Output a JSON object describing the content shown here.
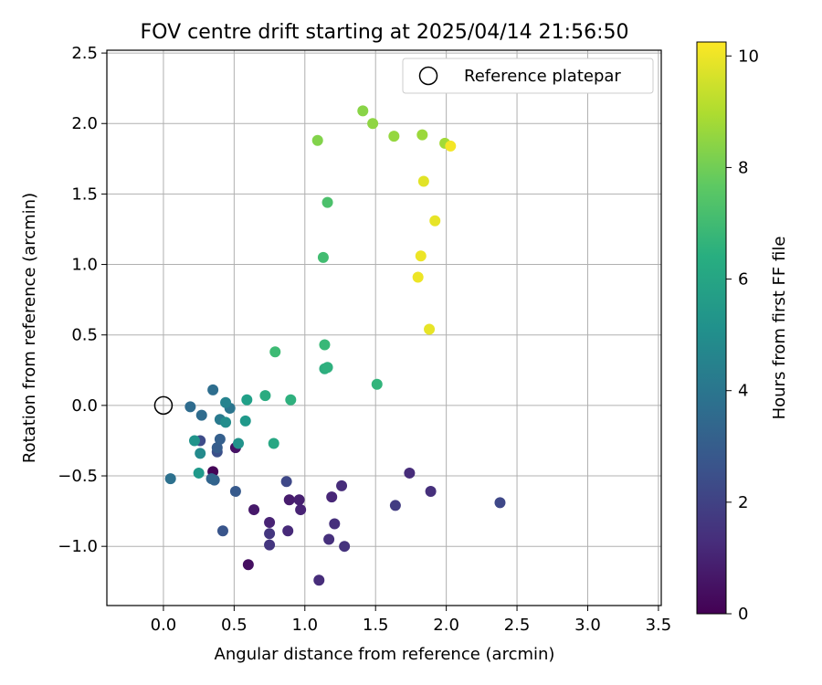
{
  "chart_data": {
    "type": "scatter",
    "title": "FOV centre drift starting at 2025/04/14 21:56:50",
    "xlabel": "Angular distance from reference (arcmin)",
    "ylabel": "Rotation from reference (arcmin)",
    "xlim": [
      -0.4,
      3.52
    ],
    "ylim": [
      -1.42,
      2.52
    ],
    "xticks": [
      0.0,
      0.5,
      1.0,
      1.5,
      2.0,
      2.5,
      3.0,
      3.5
    ],
    "xtick_labels": [
      "0.0",
      "0.5",
      "1.0",
      "1.5",
      "2.0",
      "2.5",
      "3.0",
      "3.5"
    ],
    "yticks": [
      -1.0,
      -0.5,
      0.0,
      0.5,
      1.0,
      1.5,
      2.0,
      2.5
    ],
    "ytick_labels": [
      "−1.0",
      "−0.5",
      "0.0",
      "0.5",
      "1.0",
      "1.5",
      "2.0",
      "2.5"
    ],
    "grid": true,
    "legend": {
      "placement": "upper-right",
      "entries": [
        "Reference platepar"
      ]
    },
    "reference_point": {
      "x": 0.0,
      "y": 0.0,
      "label": "Reference platepar",
      "marker": "open-circle"
    },
    "colorbar": {
      "label": "Hours from first FF file",
      "range": [
        0,
        10.25
      ],
      "ticks": [
        0,
        2,
        4,
        6,
        8,
        10
      ],
      "tick_labels": [
        "0",
        "2",
        "4",
        "6",
        "8",
        "10"
      ],
      "colormap": "viridis"
    },
    "series": [
      {
        "color_by": "hours",
        "points": [
          {
            "x": 0.35,
            "y": -0.47,
            "c": 0.1
          },
          {
            "x": 0.6,
            "y": -1.13,
            "c": 0.4
          },
          {
            "x": 0.51,
            "y": -0.3,
            "c": 0.5
          },
          {
            "x": 0.64,
            "y": -0.74,
            "c": 0.7
          },
          {
            "x": 0.89,
            "y": -0.67,
            "c": 0.8
          },
          {
            "x": 0.96,
            "y": -0.67,
            "c": 0.9
          },
          {
            "x": 0.97,
            "y": -0.74,
            "c": 1.0
          },
          {
            "x": 0.75,
            "y": -0.83,
            "c": 1.0
          },
          {
            "x": 1.19,
            "y": -0.65,
            "c": 1.1
          },
          {
            "x": 0.88,
            "y": -0.89,
            "c": 1.2
          },
          {
            "x": 1.26,
            "y": -0.57,
            "c": 1.3
          },
          {
            "x": 1.1,
            "y": -1.24,
            "c": 1.3
          },
          {
            "x": 1.21,
            "y": -0.84,
            "c": 1.4
          },
          {
            "x": 1.17,
            "y": -0.95,
            "c": 1.4
          },
          {
            "x": 1.28,
            "y": -1.0,
            "c": 1.5
          },
          {
            "x": 0.75,
            "y": -0.91,
            "c": 1.6
          },
          {
            "x": 0.75,
            "y": -0.99,
            "c": 1.6
          },
          {
            "x": 1.74,
            "y": -0.48,
            "c": 1.3
          },
          {
            "x": 1.89,
            "y": -0.61,
            "c": 1.4
          },
          {
            "x": 1.64,
            "y": -0.71,
            "c": 1.8
          },
          {
            "x": 2.38,
            "y": -0.69,
            "c": 2.2
          },
          {
            "x": 0.87,
            "y": -0.54,
            "c": 2.2
          },
          {
            "x": 0.26,
            "y": -0.25,
            "c": 2.3
          },
          {
            "x": 0.38,
            "y": -0.33,
            "c": 2.5
          },
          {
            "x": 0.42,
            "y": -0.89,
            "c": 2.7
          },
          {
            "x": 0.51,
            "y": -0.61,
            "c": 2.9
          },
          {
            "x": 0.38,
            "y": -0.3,
            "c": 3.0
          },
          {
            "x": 0.4,
            "y": -0.24,
            "c": 3.1
          },
          {
            "x": 0.36,
            "y": -0.53,
            "c": 3.2
          },
          {
            "x": 0.34,
            "y": -0.52,
            "c": 3.3
          },
          {
            "x": 0.19,
            "y": -0.01,
            "c": 3.6
          },
          {
            "x": 0.27,
            "y": -0.07,
            "c": 3.6
          },
          {
            "x": 0.35,
            "y": 0.11,
            "c": 3.7
          },
          {
            "x": 0.05,
            "y": -0.52,
            "c": 3.8
          },
          {
            "x": 0.47,
            "y": -0.02,
            "c": 4.0
          },
          {
            "x": 0.4,
            "y": -0.1,
            "c": 4.2
          },
          {
            "x": 0.44,
            "y": 0.02,
            "c": 4.6
          },
          {
            "x": 0.26,
            "y": -0.34,
            "c": 4.9
          },
          {
            "x": 0.44,
            "y": -0.12,
            "c": 5.0
          },
          {
            "x": 0.53,
            "y": -0.27,
            "c": 5.2
          },
          {
            "x": 0.22,
            "y": -0.25,
            "c": 5.3
          },
          {
            "x": 0.25,
            "y": -0.48,
            "c": 5.5
          },
          {
            "x": 0.58,
            "y": -0.11,
            "c": 5.5
          },
          {
            "x": 0.59,
            "y": 0.04,
            "c": 5.8
          },
          {
            "x": 0.78,
            "y": -0.27,
            "c": 6.1
          },
          {
            "x": 0.72,
            "y": 0.07,
            "c": 6.3
          },
          {
            "x": 0.9,
            "y": 0.04,
            "c": 6.5
          },
          {
            "x": 1.14,
            "y": 0.26,
            "c": 6.4
          },
          {
            "x": 1.16,
            "y": 0.27,
            "c": 6.5
          },
          {
            "x": 1.51,
            "y": 0.15,
            "c": 6.7
          },
          {
            "x": 1.14,
            "y": 0.43,
            "c": 6.9
          },
          {
            "x": 0.79,
            "y": 0.38,
            "c": 7.0
          },
          {
            "x": 1.13,
            "y": 1.05,
            "c": 7.1
          },
          {
            "x": 1.16,
            "y": 1.44,
            "c": 7.3
          },
          {
            "x": 1.09,
            "y": 1.88,
            "c": 8.3
          },
          {
            "x": 1.41,
            "y": 2.09,
            "c": 8.4
          },
          {
            "x": 1.48,
            "y": 2.0,
            "c": 8.5
          },
          {
            "x": 1.63,
            "y": 1.91,
            "c": 8.6
          },
          {
            "x": 1.83,
            "y": 1.92,
            "c": 8.7
          },
          {
            "x": 1.99,
            "y": 1.86,
            "c": 8.8
          },
          {
            "x": 2.03,
            "y": 1.84,
            "c": 10.1
          },
          {
            "x": 1.84,
            "y": 1.59,
            "c": 9.8
          },
          {
            "x": 1.92,
            "y": 1.31,
            "c": 9.9
          },
          {
            "x": 1.82,
            "y": 1.06,
            "c": 10.0
          },
          {
            "x": 1.8,
            "y": 0.91,
            "c": 10.0
          },
          {
            "x": 1.88,
            "y": 0.54,
            "c": 9.9
          }
        ]
      }
    ]
  }
}
